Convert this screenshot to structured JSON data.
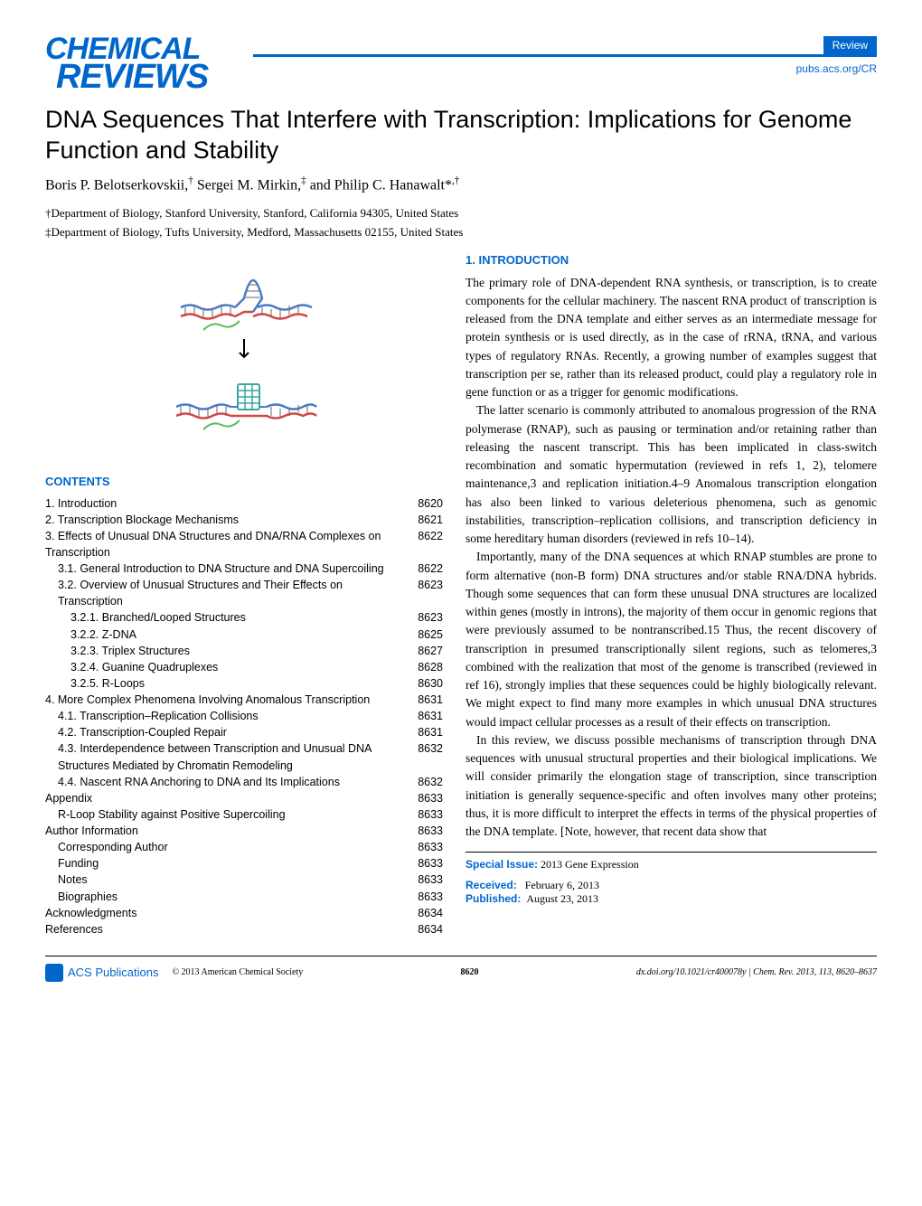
{
  "header": {
    "logo_line1": "CHEMICAL",
    "logo_line2": "REVIEWS",
    "badge": "Review",
    "journal_url": "pubs.acs.org/CR"
  },
  "title": "DNA Sequences That Interfere with Transcription: Implications for Genome Function and Stability",
  "authors": "Boris P. Belotserkovskii,† Sergei M. Mirkin,‡ and Philip C. Hanawalt*,†",
  "affiliations": [
    "†Department of Biology, Stanford University, Stanford, California 94305, United States",
    "‡Department of Biology, Tufts University, Medford, Massachusetts 02155, United States"
  ],
  "contents_header": "CONTENTS",
  "toc": [
    {
      "label": "1. Introduction",
      "page": "8620",
      "indent": 0
    },
    {
      "label": "2. Transcription Blockage Mechanisms",
      "page": "8621",
      "indent": 0
    },
    {
      "label": "3. Effects of Unusual DNA Structures and DNA/RNA Complexes on Transcription",
      "page": "8622",
      "indent": 0
    },
    {
      "label": "3.1. General Introduction to DNA Structure and DNA Supercoiling",
      "page": "8622",
      "indent": 1
    },
    {
      "label": "3.2. Overview of Unusual Structures and Their Effects on Transcription",
      "page": "8623",
      "indent": 1
    },
    {
      "label": "3.2.1. Branched/Looped Structures",
      "page": "8623",
      "indent": 2
    },
    {
      "label": "3.2.2. Z-DNA",
      "page": "8625",
      "indent": 2
    },
    {
      "label": "3.2.3. Triplex Structures",
      "page": "8627",
      "indent": 2
    },
    {
      "label": "3.2.4. Guanine Quadruplexes",
      "page": "8628",
      "indent": 2
    },
    {
      "label": "3.2.5. R-Loops",
      "page": "8630",
      "indent": 2
    },
    {
      "label": "4. More Complex Phenomena Involving Anomalous Transcription",
      "page": "8631",
      "indent": 0
    },
    {
      "label": "4.1. Transcription–Replication Collisions",
      "page": "8631",
      "indent": 1
    },
    {
      "label": "4.2. Transcription-Coupled Repair",
      "page": "8631",
      "indent": 1
    },
    {
      "label": "4.3. Interdependence between Transcription and Unusual DNA Structures Mediated by Chromatin Remodeling",
      "page": "8632",
      "indent": 1
    },
    {
      "label": "4.4. Nascent RNA Anchoring to DNA and Its Implications",
      "page": "8632",
      "indent": 1
    },
    {
      "label": "Appendix",
      "page": "8633",
      "indent": 0
    },
    {
      "label": "R-Loop Stability against Positive Supercoiling",
      "page": "8633",
      "indent": 1
    },
    {
      "label": "Author Information",
      "page": "8633",
      "indent": 0
    },
    {
      "label": "Corresponding Author",
      "page": "8633",
      "indent": 1
    },
    {
      "label": "Funding",
      "page": "8633",
      "indent": 1
    },
    {
      "label": "Notes",
      "page": "8633",
      "indent": 1
    },
    {
      "label": "Biographies",
      "page": "8633",
      "indent": 1
    },
    {
      "label": "Acknowledgments",
      "page": "8634",
      "indent": 0
    },
    {
      "label": "References",
      "page": "8634",
      "indent": 0
    }
  ],
  "intro_header": "1. INTRODUCTION",
  "intro_paragraphs": [
    "The primary role of DNA-dependent RNA synthesis, or transcription, is to create components for the cellular machinery. The nascent RNA product of transcription is released from the DNA template and either serves as an intermediate message for protein synthesis or is used directly, as in the case of rRNA, tRNA, and various types of regulatory RNAs. Recently, a growing number of examples suggest that transcription per se, rather than its released product, could play a regulatory role in gene function or as a trigger for genomic modifications.",
    "The latter scenario is commonly attributed to anomalous progression of the RNA polymerase (RNAP), such as pausing or termination and/or retaining rather than releasing the nascent transcript. This has been implicated in class-switch recombination and somatic hypermutation (reviewed in refs 1, 2), telomere maintenance,3 and replication initiation.4–9 Anomalous transcription elongation has also been linked to various deleterious phenomena, such as genomic instabilities, transcription–replication collisions, and transcription deficiency in some hereditary human disorders (reviewed in refs 10–14).",
    "Importantly, many of the DNA sequences at which RNAP stumbles are prone to form alternative (non-B form) DNA structures and/or stable RNA/DNA hybrids. Though some sequences that can form these unusual DNA structures are localized within genes (mostly in introns), the majority of them occur in genomic regions that were previously assumed to be nontranscribed.15 Thus, the recent discovery of transcription in presumed transcriptionally silent regions, such as telomeres,3 combined with the realization that most of the genome is transcribed (reviewed in ref 16), strongly implies that these sequences could be highly biologically relevant. We might expect to find many more examples in which unusual DNA structures would impact cellular processes as a result of their effects on transcription.",
    "In this review, we discuss possible mechanisms of transcription through DNA sequences with unusual structural properties and their biological implications. We will consider primarily the elongation stage of transcription, since transcription initiation is generally sequence-specific and often involves many other proteins; thus, it is more difficult to interpret the effects in terms of the physical properties of the DNA template. [Note, however, that recent data show that"
  ],
  "special_issue": {
    "label": "Special Issue:",
    "value": "2013 Gene Expression"
  },
  "received": {
    "label": "Received:",
    "value": "February 6, 2013"
  },
  "published": {
    "label": "Published:",
    "value": "August 23, 2013"
  },
  "footer": {
    "acs": "ACS Publications",
    "copyright": "© 2013 American Chemical Society",
    "page": "8620",
    "doi": "dx.doi.org/10.1021/cr400078y | Chem. Rev. 2013, 113, 8620–8637"
  },
  "svg_colors": {
    "dna_blue": "#4a7bc8",
    "dna_red": "#d64545",
    "dna_green": "#5bb85b",
    "structure_teal": "#3aa89e"
  }
}
